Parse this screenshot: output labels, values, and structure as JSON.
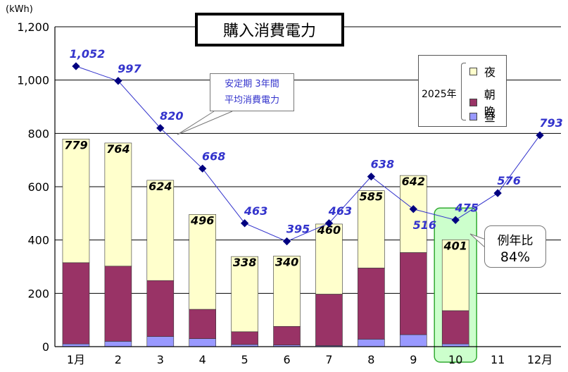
{
  "chart_data": {
    "type": "bar",
    "title": "購入消費電力",
    "unit": "(kWh)",
    "categories": [
      "1月",
      "2",
      "3",
      "4",
      "5",
      "6",
      "7",
      "8",
      "9",
      "10",
      "11",
      "12月"
    ],
    "ylim": [
      0,
      1200
    ],
    "yticks": [
      "0",
      "200",
      "400",
      "600",
      "800",
      "1,000",
      "1,200"
    ],
    "ytick_values": [
      0,
      200,
      400,
      600,
      800,
      1000,
      1200
    ],
    "legend_year": "2025年",
    "series": [
      {
        "name": "昼",
        "color": "#9999ff",
        "values": [
          10,
          20,
          38,
          30,
          8,
          6,
          4,
          28,
          45,
          10,
          null,
          null
        ]
      },
      {
        "name": "朝晩",
        "color": "#993366",
        "values": [
          305,
          282,
          210,
          110,
          48,
          70,
          193,
          267,
          308,
          125,
          null,
          null
        ]
      },
      {
        "name": "夜",
        "color": "#ffffcc",
        "values": [
          464,
          462,
          376,
          356,
          282,
          264,
          263,
          290,
          289,
          266,
          null,
          null
        ]
      }
    ],
    "bar_totals": [
      "779",
      "764",
      "624",
      "496",
      "338",
      "340",
      "460",
      "585",
      "642",
      "401",
      "",
      ""
    ],
    "line_series": {
      "name": "安定期 3年間 平均消費電力",
      "color": "#3333cc",
      "values": [
        1052,
        997,
        820,
        668,
        463,
        395,
        463,
        638,
        516,
        475,
        576,
        793
      ],
      "labels": [
        "1,052",
        "997",
        "820",
        "668",
        "463",
        "395",
        "463",
        "638",
        "516",
        "475",
        "576",
        "793"
      ]
    },
    "highlight_category": "10",
    "annotation": {
      "label": "例年比",
      "value": "84%"
    }
  },
  "callout": {
    "line1": "安定期 3年間",
    "line2": "平均消費電力"
  },
  "colors": {
    "line": "#3333cc",
    "highlight_fill": "#ccffcc",
    "highlight_stroke": "#33aa33"
  }
}
